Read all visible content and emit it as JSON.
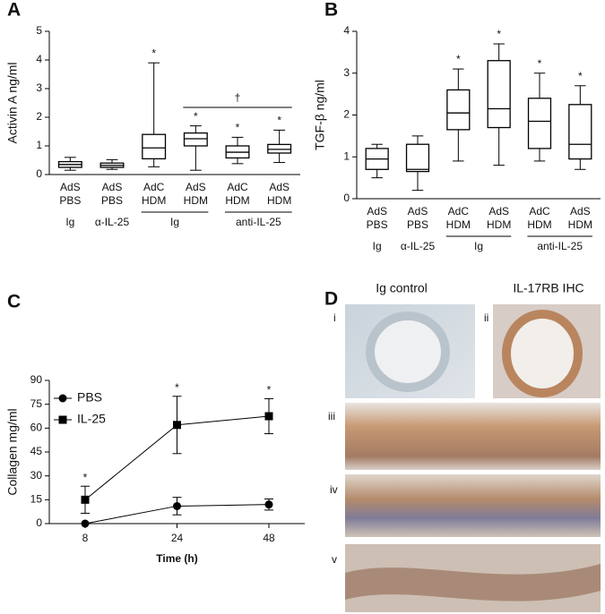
{
  "chart_data": [
    {
      "type": "box",
      "panel": "A",
      "ylabel": "Activin A ng/ml",
      "categories": [
        [
          "AdS",
          "PBS"
        ],
        [
          "AdS",
          "PBS"
        ],
        [
          "AdC",
          "HDM"
        ],
        [
          "AdS",
          "HDM"
        ],
        [
          "AdC",
          "HDM"
        ],
        [
          "AdS",
          "HDM"
        ]
      ],
      "group_labels": [
        "Ig",
        "α-IL-25",
        "Ig",
        "anti-IL-25"
      ],
      "boxes": [
        {
          "min": 0.15,
          "q1": 0.25,
          "median": 0.35,
          "q3": 0.45,
          "max": 0.6
        },
        {
          "min": 0.18,
          "q1": 0.25,
          "median": 0.32,
          "q3": 0.4,
          "max": 0.52
        },
        {
          "min": 0.27,
          "q1": 0.55,
          "median": 0.93,
          "q3": 1.4,
          "max": 3.9
        },
        {
          "min": 0.15,
          "q1": 1.0,
          "median": 1.25,
          "q3": 1.45,
          "max": 1.7
        },
        {
          "min": 0.38,
          "q1": 0.58,
          "median": 0.78,
          "q3": 1.0,
          "max": 1.3
        },
        {
          "min": 0.42,
          "q1": 0.75,
          "median": 0.88,
          "q3": 1.05,
          "max": 1.55
        }
      ],
      "significance": [
        null,
        null,
        "*",
        "*",
        "*",
        "*"
      ],
      "bracket_label": "†",
      "ylim": [
        0,
        5
      ],
      "yticks": [
        0,
        1,
        2,
        3,
        4,
        5
      ],
      "color": "#000000"
    },
    {
      "type": "box",
      "panel": "B",
      "ylabel": "TGF-β ng/ml",
      "categories": [
        [
          "AdS",
          "PBS"
        ],
        [
          "AdS",
          "PBS"
        ],
        [
          "AdC",
          "HDM"
        ],
        [
          "AdS",
          "HDM"
        ],
        [
          "AdC",
          "HDM"
        ],
        [
          "AdS",
          "HDM"
        ]
      ],
      "group_labels": [
        "Ig",
        "α-IL-25",
        "Ig",
        "anti-IL-25"
      ],
      "boxes": [
        {
          "min": 0.5,
          "q1": 0.7,
          "median": 0.95,
          "q3": 1.2,
          "max": 1.3
        },
        {
          "min": 0.2,
          "q1": 0.65,
          "median": 0.7,
          "q3": 1.3,
          "max": 1.5
        },
        {
          "min": 0.9,
          "q1": 1.65,
          "median": 2.05,
          "q3": 2.6,
          "max": 3.1
        },
        {
          "min": 0.8,
          "q1": 1.7,
          "median": 2.15,
          "q3": 3.3,
          "max": 3.7
        },
        {
          "min": 0.9,
          "q1": 1.2,
          "median": 1.85,
          "q3": 2.4,
          "max": 3.0
        },
        {
          "min": 0.7,
          "q1": 0.95,
          "median": 1.3,
          "q3": 2.25,
          "max": 2.7
        }
      ],
      "significance": [
        null,
        null,
        "*",
        "*",
        "*",
        "*"
      ],
      "ylim": [
        0,
        4
      ],
      "yticks": [
        0,
        1,
        2,
        3,
        4
      ],
      "color": "#000000"
    },
    {
      "type": "line",
      "panel": "C",
      "ylabel": "Collagen mg/ml",
      "xlabel": "Time (h)",
      "categories": [
        "8",
        "24",
        "48"
      ],
      "series": [
        {
          "name": "PBS",
          "color": "#000000",
          "marker": "circle",
          "values": [
            0,
            11,
            12
          ],
          "errors": [
            null,
            5.5,
            3.5
          ]
        },
        {
          "name": "IL-25",
          "color": "#000000",
          "marker": "square",
          "values": [
            15,
            62,
            67.5
          ],
          "errors": [
            8.5,
            18,
            11
          ],
          "significance": [
            "*",
            "*",
            "*"
          ]
        }
      ],
      "ylim": [
        0,
        90
      ],
      "yticks": [
        0,
        15,
        30,
        45,
        60,
        75,
        90
      ],
      "legend": "upper left"
    }
  ],
  "image_panel": {
    "panel": "D",
    "columns": [
      "Ig control",
      "IL-17RB IHC"
    ],
    "subpanels": [
      "i",
      "ii",
      "iii",
      "iv",
      "v"
    ]
  }
}
